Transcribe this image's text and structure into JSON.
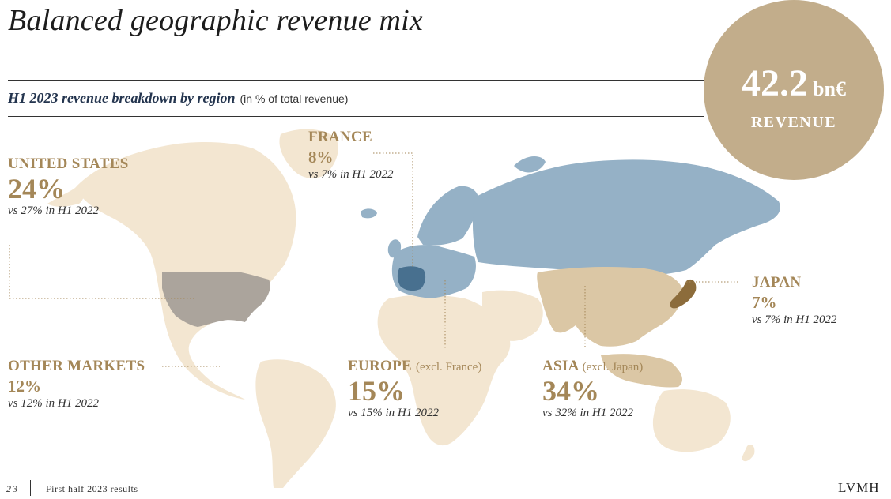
{
  "title": "Balanced geographic revenue mix",
  "subtitle": {
    "main": "H1 2023 revenue breakdown by region",
    "note": "(in % of total revenue)"
  },
  "badge": {
    "value": "42.2",
    "unit": "bn€",
    "label": "REVENUE"
  },
  "regions": {
    "united_states": {
      "name": "UNITED STATES",
      "share": "24%",
      "comparison": "vs 27% in H1 2022"
    },
    "france": {
      "name": "FRANCE",
      "share": "8%",
      "comparison": "vs 7% in H1 2022"
    },
    "japan": {
      "name": "JAPAN",
      "share": "7%",
      "comparison": "vs 7% in H1 2022"
    },
    "other_markets": {
      "name": "OTHER MARKETS",
      "share": "12%",
      "comparison": "vs 12% in H1 2022"
    },
    "europe": {
      "name": "EUROPE",
      "note": "(excl. France)",
      "share": "15%",
      "comparison": "vs 15% in H1 2022"
    },
    "asia": {
      "name": "ASIA",
      "note": "(excl. Japan)",
      "share": "34%",
      "comparison": "vs 32% in H1 2022"
    }
  },
  "colors": {
    "gold": "#a48758",
    "badge": "#c2ad8b",
    "land": "#f3e6d1",
    "europe_blue": "#95b1c6",
    "france_blue": "#48708f",
    "usa_grey": "#aba49c",
    "asia_tan": "#dbc7a5",
    "japan_brown": "#8c6c3b"
  },
  "footer": {
    "page": "23",
    "label": "First half 2023 results",
    "logo": "LVMH"
  }
}
